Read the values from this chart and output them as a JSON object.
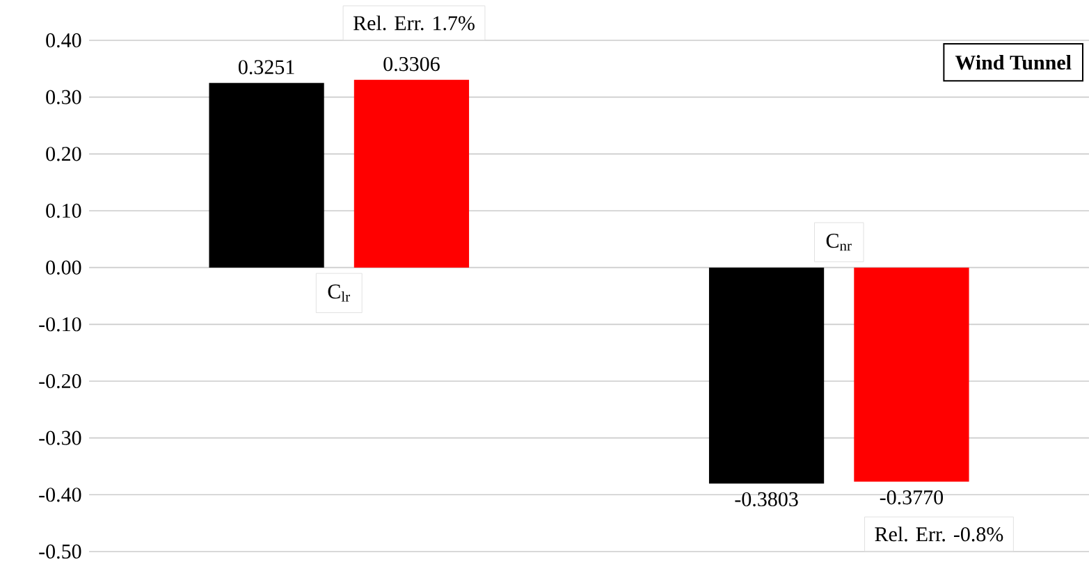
{
  "chart_data": {
    "type": "bar",
    "categories": [
      "C$_{lr}$",
      "C$_{nr}$"
    ],
    "series": [
      {
        "name": "Wind Tunnel",
        "color": "#000000",
        "values": [
          0.3251,
          -0.3803
        ],
        "value_labels": [
          "0.3251",
          "-0.3803"
        ]
      },
      {
        "color": "#ff0000",
        "values": [
          0.3306,
          -0.377
        ],
        "value_labels": [
          "0.3306",
          "-0.3770"
        ]
      }
    ],
    "ylim": [
      -0.5,
      0.4
    ],
    "yticks": [
      {
        "value": -0.5,
        "label": "-0.50"
      },
      {
        "value": -0.4,
        "label": "-0.40"
      },
      {
        "value": -0.3,
        "label": "-0.30"
      },
      {
        "value": -0.2,
        "label": "-0.20"
      },
      {
        "value": -0.1,
        "label": "-0.10"
      },
      {
        "value": 0,
        "label": "0.00"
      },
      {
        "value": 0.1,
        "label": "0.10"
      },
      {
        "value": 0.2,
        "label": "0.20"
      },
      {
        "value": 0.3,
        "label": "0.30"
      },
      {
        "value": 0.4,
        "label": "0.40"
      }
    ],
    "grid": "y",
    "legend": "top right",
    "annotations": [
      "Rel. Err. 1.7%",
      "Rel. Err. -0.8%"
    ]
  }
}
